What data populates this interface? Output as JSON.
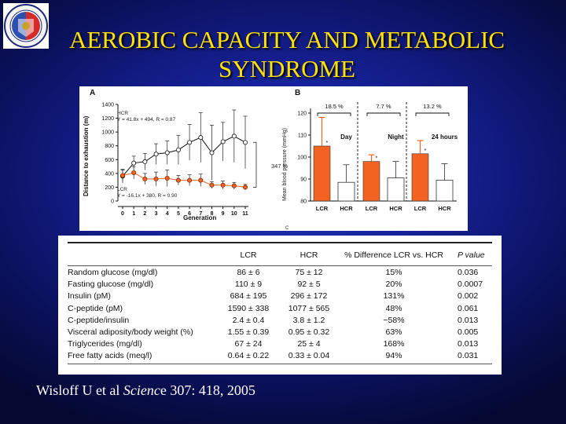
{
  "slide": {
    "title_line1": "AEROBIC CAPACITY AND METABOLIC",
    "title_line2": "SYNDROME",
    "citation_pre": "Wisloff U et al ",
    "citation_journal": "Scienc",
    "citation_post": "e 307: 418, 2005"
  },
  "logo": {
    "icon": "university-seal-logo"
  },
  "colors": {
    "lcr": "#f26322",
    "hcr": "#ffffff",
    "title": "#ffe200",
    "background": "#16229a"
  },
  "panel_a": {
    "label": "A",
    "hcr_label": "HCR",
    "hcr_eq": "Y = 41.8x + 494, R = 0.87",
    "lcr_label": "LCR",
    "lcr_eq": "Y = -16.1x + 380, R = 0.90",
    "annotation": "347 %",
    "xlabel": "Generation",
    "ylabel": "Distance to exhaustion (m)"
  },
  "panel_b": {
    "label": "B",
    "ylabel": "Mean blood pressure (mmHg)",
    "groups": [
      {
        "name": "Day",
        "pct": "18.5 %"
      },
      {
        "name": "Night",
        "pct": "7.7 %"
      },
      {
        "name": "24 hours",
        "pct": "13.2 %"
      }
    ],
    "star": "*",
    "bar_labels": [
      "LCR",
      "HCR",
      "LCR",
      "HCR",
      "LCR",
      "HCR"
    ],
    "panel_c_stub": "C"
  },
  "chart_data": [
    {
      "type": "line",
      "x": [
        0,
        1,
        2,
        3,
        4,
        5,
        6,
        7,
        8,
        9,
        10,
        11
      ],
      "series": [
        {
          "name": "HCR",
          "values": [
            360,
            550,
            570,
            680,
            700,
            740,
            850,
            920,
            700,
            860,
            940,
            850
          ],
          "err": [
            100,
            100,
            120,
            150,
            170,
            210,
            260,
            360,
            400,
            280,
            380,
            380
          ]
        },
        {
          "name": "LCR",
          "values": [
            370,
            410,
            320,
            320,
            330,
            300,
            300,
            300,
            230,
            230,
            220,
            200
          ],
          "err": [
            80,
            90,
            80,
            100,
            120,
            70,
            80,
            90,
            50,
            60,
            50,
            40
          ]
        }
      ],
      "xlim": [
        0,
        11
      ],
      "ylim": [
        0,
        1400
      ],
      "yticks": [
        0,
        200,
        400,
        600,
        800,
        1000,
        1200,
        1400
      ],
      "xlabel": "Generation",
      "ylabel": "Distance to exhaustion (m)"
    },
    {
      "type": "bar",
      "categories": [
        "Day",
        "Night",
        "24 hours"
      ],
      "series": [
        {
          "name": "LCR",
          "values": [
            105,
            98,
            101.5
          ],
          "err": [
            13,
            3,
            6
          ]
        },
        {
          "name": "HCR",
          "values": [
            88.5,
            90.5,
            89.5
          ],
          "err": [
            8,
            7.5,
            7.5
          ]
        }
      ],
      "ylim": [
        80,
        125
      ],
      "yticks": [
        80,
        90,
        100,
        110,
        120
      ],
      "ylabel": "Mean blood pressure (mmHg)"
    }
  ],
  "table": {
    "headers": [
      "",
      "LCR",
      "HCR",
      "% Difference LCR vs. HCR",
      "P value"
    ],
    "rows": [
      [
        "Random glucose (mg/dl)",
        "86 ± 6",
        "75 ± 12",
        "15%",
        "0.036"
      ],
      [
        "Fasting glucose (mg/dl)",
        "110 ± 9",
        "92 ± 5",
        "20%",
        "0.0007"
      ],
      [
        "Insulin (pM)",
        "684 ± 195",
        "296 ± 172",
        "131%",
        "0.002"
      ],
      [
        "C-peptide (pM)",
        "1590 ± 338",
        "1077 ± 565",
        "48%",
        "0.061"
      ],
      [
        "C-peptide/insulin",
        "2.4 ± 0.4",
        "3.8 ± 1.2",
        "−58%",
        "0.013"
      ],
      [
        "Visceral adiposity/body weight (%)",
        "1.55 ± 0.39",
        "0.95 ± 0.32",
        "63%",
        "0.005"
      ],
      [
        "Triglycerides (mg/dl)",
        "67 ± 24",
        "25 ± 4",
        "168%",
        "0.013"
      ],
      [
        "Free fatty acids (meq/l)",
        "0.64 ± 0.22",
        "0.33 ± 0.04",
        "94%",
        "0.031"
      ]
    ]
  }
}
